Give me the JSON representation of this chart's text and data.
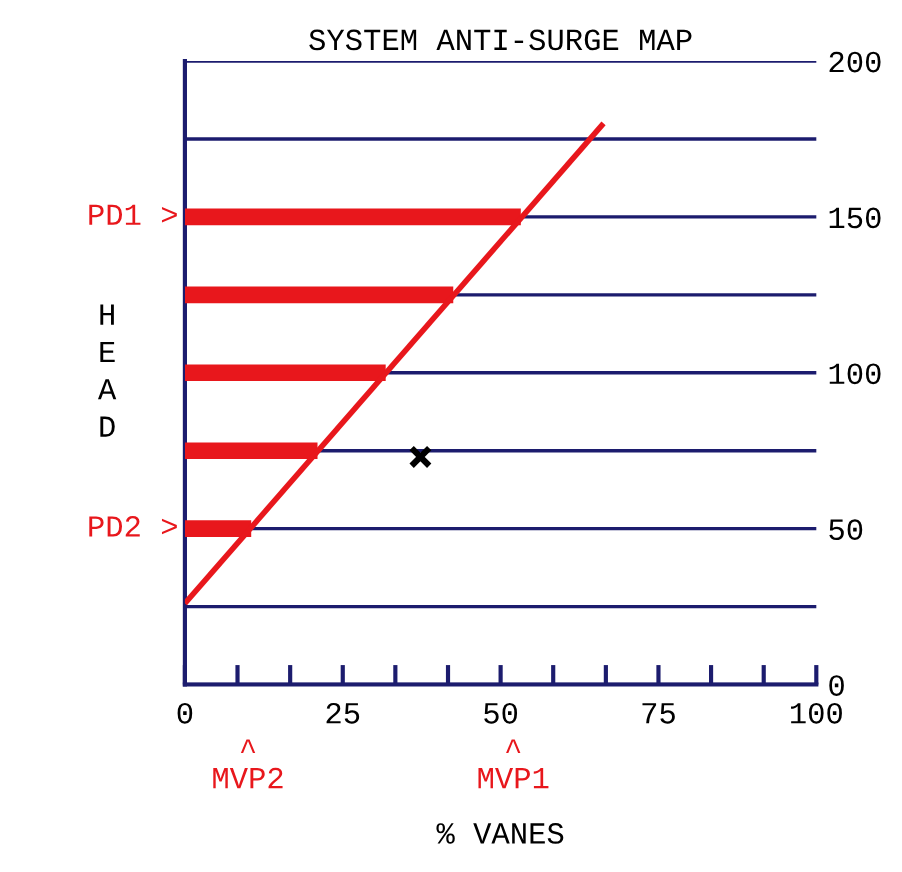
{
  "chart_data": {
    "type": "line",
    "title": "SYSTEM ANTI-SURGE MAP",
    "xlabel": "% VANES",
    "ylabel": "HEAD",
    "xlim": [
      0,
      100
    ],
    "ylim": [
      0,
      200
    ],
    "xticks": [
      0,
      {
        "value": 8.33,
        "label": null
      },
      {
        "value": 16.67,
        "label": null
      },
      25,
      {
        "value": 33.33,
        "label": null
      },
      {
        "value": 41.67,
        "label": null
      },
      50,
      {
        "value": 58.33,
        "label": null
      },
      {
        "value": 66.67,
        "label": null
      },
      75,
      {
        "value": 83.33,
        "label": null
      },
      {
        "value": 91.67,
        "label": null
      },
      100
    ],
    "yticks": [
      0,
      {
        "value": 25,
        "label": null
      },
      50,
      {
        "value": 75,
        "label": null
      },
      100,
      {
        "value": 125,
        "label": null
      },
      150,
      {
        "value": 175,
        "label": null
      },
      200
    ],
    "grid": "y",
    "series": [
      {
        "color": "#e8171c",
        "x": [
          0,
          53.2
        ],
        "values": [
          150,
          150
        ]
      },
      {
        "color": "#e8171c",
        "x": [
          0,
          42.5
        ],
        "values": [
          125,
          125
        ]
      },
      {
        "color": "#e8171c",
        "x": [
          0,
          31.8
        ],
        "values": [
          100,
          100
        ]
      },
      {
        "color": "#e8171c",
        "x": [
          0,
          21.0
        ],
        "values": [
          75,
          75
        ]
      },
      {
        "color": "#e8171c",
        "x": [
          0,
          10.5
        ],
        "values": [
          50,
          50
        ]
      },
      {
        "color": "#e8171c",
        "x": [
          0,
          66.3
        ],
        "values": [
          26,
          180
        ]
      },
      {
        "type": "scatter",
        "color": "#000000",
        "marker": "cross",
        "x": [
          37.3
        ],
        "values": [
          73
        ]
      }
    ],
    "annotations": [
      "PD1 >",
      "PD2 >",
      "^\nMVP2",
      "^\nMVP1"
    ]
  }
}
